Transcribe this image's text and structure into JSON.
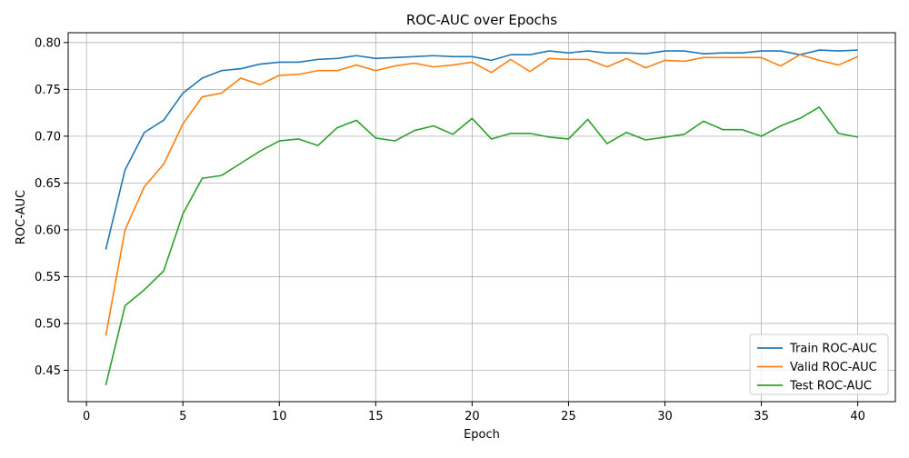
{
  "chart_data": {
    "type": "line",
    "title": "ROC-AUC over Epochs",
    "xlabel": "Epoch",
    "ylabel": "ROC-AUC",
    "xlim": [
      -0.95,
      41.95
    ],
    "ylim": [
      0.4165,
      0.8105
    ],
    "xticks": [
      0,
      5,
      10,
      15,
      20,
      25,
      30,
      35,
      40
    ],
    "yticks": [
      0.45,
      0.5,
      0.55,
      0.6,
      0.65,
      0.7,
      0.75,
      0.8
    ],
    "grid": true,
    "legend_position": "lower right",
    "x": [
      1,
      2,
      3,
      4,
      5,
      6,
      7,
      8,
      9,
      10,
      11,
      12,
      13,
      14,
      15,
      16,
      17,
      18,
      19,
      20,
      21,
      22,
      23,
      24,
      25,
      26,
      27,
      28,
      29,
      30,
      31,
      32,
      33,
      34,
      35,
      36,
      37,
      38,
      39,
      40
    ],
    "series": [
      {
        "name": "Train ROC-AUC",
        "color": "#1f77b4",
        "values": [
          0.579,
          0.664,
          0.704,
          0.717,
          0.746,
          0.762,
          0.77,
          0.772,
          0.777,
          0.779,
          0.779,
          0.782,
          0.783,
          0.786,
          0.783,
          0.784,
          0.785,
          0.786,
          0.785,
          0.785,
          0.781,
          0.787,
          0.787,
          0.791,
          0.789,
          0.791,
          0.789,
          0.789,
          0.788,
          0.791,
          0.791,
          0.788,
          0.789,
          0.789,
          0.791,
          0.791,
          0.787,
          0.792,
          0.791,
          0.792
        ]
      },
      {
        "name": "Valid ROC-AUC",
        "color": "#ff7f0e",
        "values": [
          0.487,
          0.6,
          0.646,
          0.67,
          0.713,
          0.742,
          0.746,
          0.762,
          0.755,
          0.765,
          0.766,
          0.77,
          0.77,
          0.776,
          0.77,
          0.775,
          0.778,
          0.774,
          0.776,
          0.779,
          0.768,
          0.782,
          0.769,
          0.783,
          0.782,
          0.782,
          0.774,
          0.783,
          0.773,
          0.781,
          0.78,
          0.784,
          0.784,
          0.784,
          0.784,
          0.775,
          0.787,
          0.781,
          0.776,
          0.785
        ]
      },
      {
        "name": "Test ROC-AUC",
        "color": "#2ca02c",
        "values": [
          0.434,
          0.519,
          0.536,
          0.556,
          0.617,
          0.655,
          0.658,
          0.671,
          0.684,
          0.695,
          0.697,
          0.69,
          0.709,
          0.717,
          0.698,
          0.695,
          0.706,
          0.711,
          0.702,
          0.719,
          0.697,
          0.703,
          0.703,
          0.699,
          0.697,
          0.718,
          0.692,
          0.704,
          0.696,
          0.699,
          0.702,
          0.716,
          0.707,
          0.707,
          0.7,
          0.711,
          0.719,
          0.731,
          0.703,
          0.699
        ]
      }
    ]
  }
}
